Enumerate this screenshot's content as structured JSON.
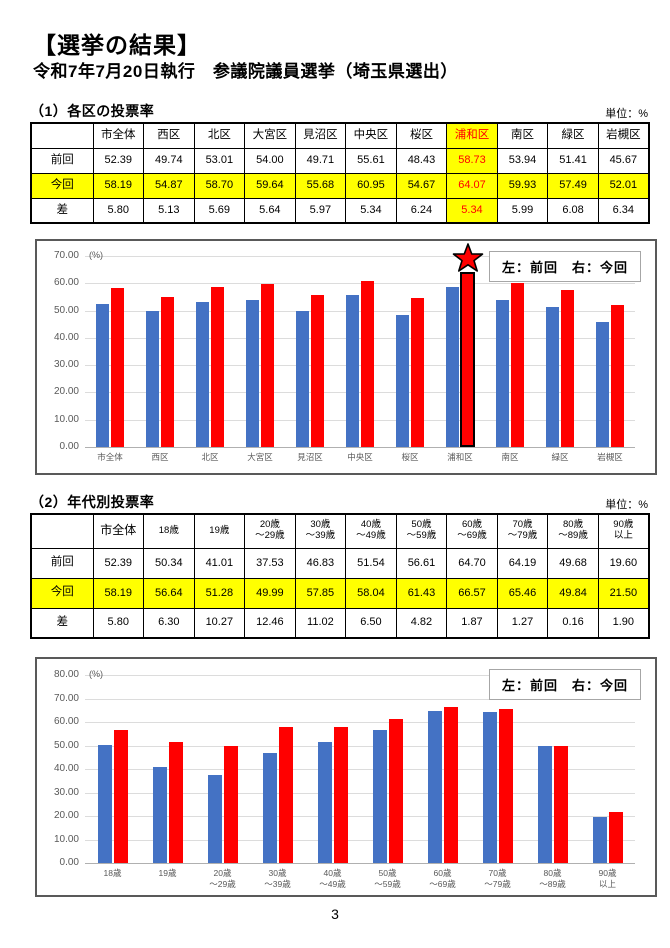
{
  "page": {
    "title": "【選挙の結果】",
    "subtitle": "令和7年7月20日執行　参議院議員選挙（埼玉県選出）",
    "page_number": "3"
  },
  "colors": {
    "previous_bar": "#4472C4",
    "current_bar": "#FF0000",
    "highlight_bg": "#FFFF00",
    "highlight_text": "#FF0000",
    "table_border": "#000000"
  },
  "section1": {
    "heading": "（1）各区の投票率",
    "unit": "単位：%",
    "table": {
      "corner": "",
      "columns": [
        "市全体",
        "西区",
        "北区",
        "大宮区",
        "見沼区",
        "中央区",
        "桜区",
        "浦和区",
        "南区",
        "緑区",
        "岩槻区"
      ],
      "highlight_col": 7,
      "rows": [
        {
          "label": "前回",
          "highlight": false,
          "values": [
            "52.39",
            "49.74",
            "53.01",
            "54.00",
            "49.71",
            "55.61",
            "48.43",
            "58.73",
            "53.94",
            "51.41",
            "45.67"
          ]
        },
        {
          "label": "今回",
          "highlight": true,
          "values": [
            "58.19",
            "54.87",
            "58.70",
            "59.64",
            "55.68",
            "60.95",
            "54.67",
            "64.07",
            "59.93",
            "57.49",
            "52.01"
          ]
        },
        {
          "label": "差",
          "highlight": false,
          "values": [
            "5.80",
            "5.13",
            "5.69",
            "5.64",
            "5.97",
            "5.34",
            "6.24",
            "5.34",
            "5.99",
            "6.08",
            "6.34"
          ]
        }
      ]
    }
  },
  "section2": {
    "heading": "（2）年代別投票率",
    "unit": "単位：%",
    "table": {
      "corner": "",
      "columns": [
        "市全体",
        "18歳",
        "19歳",
        "20歳\n～29歳",
        "30歳\n～39歳",
        "40歳\n～49歳",
        "50歳\n～59歳",
        "60歳\n～69歳",
        "70歳\n～79歳",
        "80歳\n～89歳",
        "90歳\n以上"
      ],
      "highlight_col": null,
      "rows": [
        {
          "label": "前回",
          "highlight": false,
          "values": [
            "52.39",
            "50.34",
            "41.01",
            "37.53",
            "46.83",
            "51.54",
            "56.61",
            "64.70",
            "64.19",
            "49.68",
            "19.60"
          ]
        },
        {
          "label": "今回",
          "highlight": true,
          "values": [
            "58.19",
            "56.64",
            "51.28",
            "49.99",
            "57.85",
            "58.04",
            "61.43",
            "66.57",
            "65.46",
            "49.84",
            "21.50"
          ]
        },
        {
          "label": "差",
          "highlight": false,
          "values": [
            "5.80",
            "6.30",
            "10.27",
            "12.46",
            "11.02",
            "6.50",
            "4.82",
            "1.87",
            "1.27",
            "0.16",
            "1.90"
          ]
        }
      ]
    }
  },
  "chart_data": [
    {
      "type": "bar",
      "title": "各区の投票率（前回・今回）",
      "categories": [
        "市全体",
        "西区",
        "北区",
        "大宮区",
        "見沼区",
        "中央区",
        "桜区",
        "浦和区",
        "南区",
        "緑区",
        "岩槻区"
      ],
      "series": [
        {
          "name": "前回",
          "color": "#4472C4",
          "values": [
            52.39,
            49.74,
            53.01,
            54.0,
            49.71,
            55.61,
            48.43,
            58.73,
            53.94,
            51.41,
            45.67
          ]
        },
        {
          "name": "今回",
          "color": "#FF0000",
          "values": [
            58.19,
            54.87,
            58.7,
            59.64,
            55.68,
            60.95,
            54.67,
            64.07,
            59.93,
            57.49,
            52.01
          ]
        }
      ],
      "ylim": [
        0,
        70
      ],
      "ytick_labels": [
        "70.00",
        "60.00",
        "50.00",
        "40.00",
        "30.00",
        "20.00",
        "10.00",
        "0.00"
      ],
      "unit": "(%)",
      "grid": true,
      "legend": "左：前回　右：今回",
      "legend_position": "top-right",
      "highlight_category": "浦和区",
      "star_on_category": "浦和区"
    },
    {
      "type": "bar",
      "title": "年代別投票率（前回・今回）",
      "categories": [
        "18歳",
        "19歳",
        "20歳\n～29歳",
        "30歳\n～39歳",
        "40歳\n～49歳",
        "50歳\n～59歳",
        "60歳\n～69歳",
        "70歳\n～79歳",
        "80歳\n～89歳",
        "90歳\n以上"
      ],
      "series": [
        {
          "name": "前回",
          "color": "#4472C4",
          "values": [
            50.34,
            41.01,
            37.53,
            46.83,
            51.54,
            56.61,
            64.7,
            64.19,
            49.68,
            19.6
          ]
        },
        {
          "name": "今回",
          "color": "#FF0000",
          "values": [
            56.64,
            51.28,
            49.99,
            57.85,
            58.04,
            61.43,
            66.57,
            65.46,
            49.84,
            21.5
          ]
        }
      ],
      "ylim": [
        0,
        80
      ],
      "ytick_labels": [
        "80.00",
        "70.00",
        "60.00",
        "50.00",
        "40.00",
        "30.00",
        "20.00",
        "10.00",
        "0.00"
      ],
      "unit": "(%)",
      "grid": true,
      "legend": "左：前回　右：今回",
      "legend_position": "top-right",
      "highlight_category": null,
      "star_on_category": null
    }
  ]
}
